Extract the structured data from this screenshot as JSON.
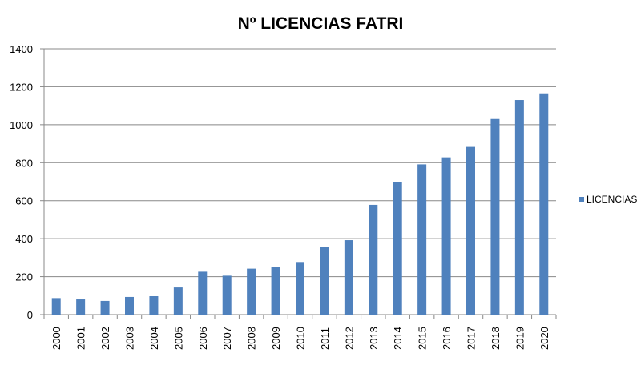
{
  "chart_data": {
    "type": "bar",
    "title": "Nº LICENCIAS FATRI",
    "xlabel": "",
    "ylabel": "",
    "categories": [
      "2000",
      "2001",
      "2002",
      "2003",
      "2004",
      "2005",
      "2006",
      "2007",
      "2008",
      "2009",
      "2010",
      "2011",
      "2012",
      "2013",
      "2014",
      "2015",
      "2016",
      "2017",
      "2018",
      "2019",
      "2020"
    ],
    "series": [
      {
        "name": "LICENCIAS",
        "color": "#4f81bd",
        "values": [
          87,
          80,
          72,
          93,
          97,
          143,
          226,
          205,
          242,
          250,
          277,
          358,
          392,
          578,
          698,
          791,
          828,
          883,
          1030,
          1130,
          1165
        ]
      }
    ],
    "ylim": [
      0,
      1400
    ],
    "yticks": [
      0,
      200,
      400,
      600,
      800,
      1000,
      1200,
      1400
    ],
    "grid": true,
    "legend": "right"
  }
}
